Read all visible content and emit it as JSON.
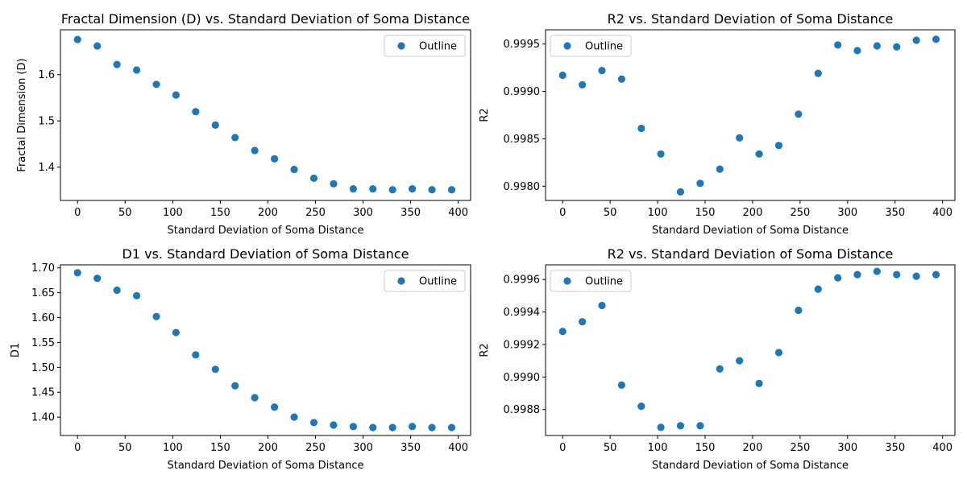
{
  "colors": {
    "series": "#1f77b4",
    "axis": "#000000",
    "legend_border": "#cccccc"
  },
  "chart_data": [
    {
      "type": "scatter",
      "title": "Fractal Dimension (D) vs. Standard Deviation of Soma Distance",
      "xlabel": "Standard Deviation of Soma Distance",
      "ylabel": "Fractal Dimension (D)",
      "xlim": [
        -18,
        413
      ],
      "ylim": [
        1.328,
        1.697
      ],
      "xticks": [
        0,
        50,
        100,
        150,
        200,
        250,
        300,
        350,
        400
      ],
      "yticks": [
        1.4,
        1.5,
        1.6
      ],
      "ytick_labels": [
        "1.4",
        "1.5",
        "1.6"
      ],
      "legend": "upper right",
      "grid": false,
      "series": [
        {
          "name": "Outline",
          "x": [
            0,
            20.7,
            41.4,
            62.1,
            82.8,
            103.4,
            124.1,
            144.8,
            165.5,
            186.2,
            206.9,
            227.6,
            248.3,
            269.0,
            289.7,
            310.3,
            331.0,
            351.7,
            372.4,
            393.1
          ],
          "y": [
            1.676,
            1.662,
            1.622,
            1.61,
            1.579,
            1.556,
            1.52,
            1.491,
            1.464,
            1.436,
            1.418,
            1.395,
            1.376,
            1.364,
            1.353,
            1.353,
            1.351,
            1.353,
            1.351,
            1.351
          ]
        }
      ]
    },
    {
      "type": "scatter",
      "title": "R2 vs. Standard Deviation of Soma Distance",
      "xlabel": "Standard Deviation of Soma Distance",
      "ylabel": "R2",
      "xlim": [
        -18,
        413
      ],
      "ylim": [
        0.99785,
        0.99965
      ],
      "xticks": [
        0,
        50,
        100,
        150,
        200,
        250,
        300,
        350,
        400
      ],
      "yticks": [
        0.998,
        0.9985,
        0.999,
        0.9995
      ],
      "ytick_labels": [
        "0.9980",
        "0.9985",
        "0.9990",
        "0.9995"
      ],
      "legend": "upper left",
      "grid": false,
      "series": [
        {
          "name": "Outline",
          "x": [
            0,
            20.7,
            41.4,
            62.1,
            82.8,
            103.4,
            124.1,
            144.8,
            165.5,
            186.2,
            206.9,
            227.6,
            248.3,
            269.0,
            289.7,
            310.3,
            331.0,
            351.7,
            372.4,
            393.1
          ],
          "y": [
            0.99917,
            0.99907,
            0.99922,
            0.99913,
            0.99861,
            0.99834,
            0.99794,
            0.99803,
            0.99818,
            0.99851,
            0.99834,
            0.99843,
            0.99876,
            0.99919,
            0.99949,
            0.99943,
            0.99948,
            0.99947,
            0.99954,
            0.99955
          ]
        }
      ]
    },
    {
      "type": "scatter",
      "title": "D1 vs. Standard Deviation of Soma Distance",
      "xlabel": "Standard Deviation of Soma Distance",
      "ylabel": "D1",
      "xlim": [
        -18,
        413
      ],
      "ylim": [
        1.363,
        1.706
      ],
      "xticks": [
        0,
        50,
        100,
        150,
        200,
        250,
        300,
        350,
        400
      ],
      "yticks": [
        1.4,
        1.45,
        1.5,
        1.55,
        1.6,
        1.65,
        1.7
      ],
      "ytick_labels": [
        "1.40",
        "1.45",
        "1.50",
        "1.55",
        "1.60",
        "1.65",
        "1.70"
      ],
      "legend": "upper right",
      "grid": false,
      "series": [
        {
          "name": "Outline",
          "x": [
            0,
            20.7,
            41.4,
            62.1,
            82.8,
            103.4,
            124.1,
            144.8,
            165.5,
            186.2,
            206.9,
            227.6,
            248.3,
            269.0,
            289.7,
            310.3,
            331.0,
            351.7,
            372.4,
            393.1
          ],
          "y": [
            1.69,
            1.679,
            1.655,
            1.644,
            1.602,
            1.57,
            1.525,
            1.496,
            1.463,
            1.439,
            1.42,
            1.4,
            1.389,
            1.384,
            1.381,
            1.379,
            1.379,
            1.381,
            1.379,
            1.379
          ]
        }
      ]
    },
    {
      "type": "scatter",
      "title": "R2 vs. Standard Deviation of Soma Distance",
      "xlabel": "Standard Deviation of Soma Distance",
      "ylabel": "R2",
      "xlim": [
        -18,
        413
      ],
      "ylim": [
        0.99864,
        0.99969
      ],
      "xticks": [
        0,
        50,
        100,
        150,
        200,
        250,
        300,
        350,
        400
      ],
      "yticks": [
        0.9988,
        0.999,
        0.9992,
        0.9994,
        0.9996
      ],
      "ytick_labels": [
        "0.9988",
        "0.9990",
        "0.9992",
        "0.9994",
        "0.9996"
      ],
      "legend": "upper left",
      "grid": false,
      "series": [
        {
          "name": "Outline",
          "x": [
            0,
            20.7,
            41.4,
            62.1,
            82.8,
            103.4,
            124.1,
            144.8,
            165.5,
            186.2,
            206.9,
            227.6,
            248.3,
            269.0,
            289.7,
            310.3,
            331.0,
            351.7,
            372.4,
            393.1
          ],
          "y": [
            0.99928,
            0.99934,
            0.99944,
            0.99895,
            0.99882,
            0.99869,
            0.9987,
            0.9987,
            0.99905,
            0.9991,
            0.99896,
            0.99915,
            0.99941,
            0.99954,
            0.99961,
            0.99963,
            0.99965,
            0.99963,
            0.99962,
            0.99963
          ]
        }
      ]
    }
  ]
}
